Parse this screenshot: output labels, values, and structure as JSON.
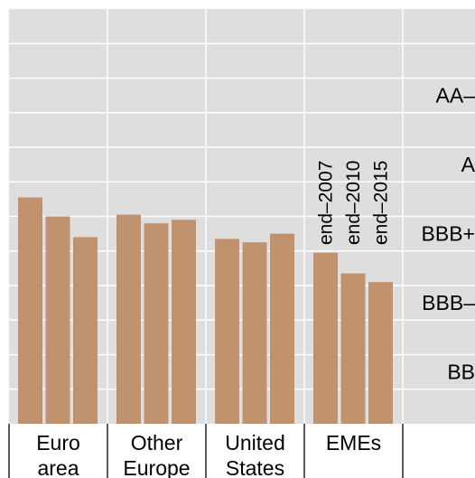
{
  "chart_data": {
    "type": "bar",
    "title": "",
    "xlabel": "",
    "ylabel": "",
    "categories": [
      [
        "Euro",
        "area"
      ],
      [
        "Other",
        "Europe"
      ],
      [
        "United",
        "States"
      ],
      [
        "EMEs"
      ]
    ],
    "series": [
      {
        "name": "end–2007",
        "values": [
          13.1,
          12.1,
          10.7,
          9.9
        ]
      },
      {
        "name": "end–2010",
        "values": [
          12.0,
          11.6,
          10.5,
          8.7
        ]
      },
      {
        "name": "end–2015",
        "values": [
          10.8,
          11.8,
          11.0,
          8.2
        ]
      }
    ],
    "ylim": [
      0,
      24
    ],
    "right_axis": {
      "tick_labels": [
        "AA–",
        "A",
        "BBB+",
        "BBB–",
        "BB"
      ],
      "tick_positions": [
        19,
        15,
        11,
        7,
        3
      ]
    },
    "series_labels_shown_over": "EMEs",
    "colors": {
      "bar": "#c0926e",
      "panel": "#dedede",
      "grid": "#ffffff"
    },
    "grid": true
  }
}
